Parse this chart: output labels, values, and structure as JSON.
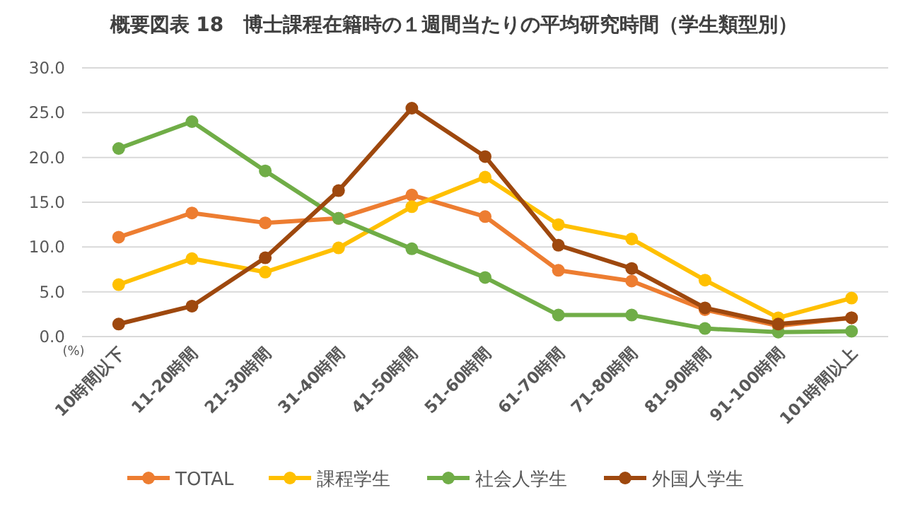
{
  "chart_data": {
    "type": "line",
    "title": "概要図表 18　博士課程在籍時の１週間当たりの平均研究時間（学生類型別）",
    "ylabel": "(%)",
    "categories": [
      "10時間以下",
      "11-20時間",
      "21-30時間",
      "31-40時間",
      "41-50時間",
      "51-60時間",
      "61-70時間",
      "71-80時間",
      "81-90時間",
      "91-100時間",
      "101時間以上"
    ],
    "series": [
      {
        "name": "TOTAL",
        "color": "#ed7d31",
        "values": [
          11.1,
          13.8,
          12.7,
          13.2,
          15.8,
          13.4,
          7.4,
          6.2,
          3.0,
          1.2,
          2.1
        ]
      },
      {
        "name": "課程学生",
        "color": "#ffc000",
        "values": [
          5.8,
          8.7,
          7.2,
          9.9,
          14.5,
          17.8,
          12.5,
          10.9,
          6.3,
          2.1,
          4.3
        ]
      },
      {
        "name": "社会人学生",
        "color": "#70ad47",
        "values": [
          21.0,
          24.0,
          18.5,
          13.2,
          9.8,
          6.6,
          2.4,
          2.4,
          0.9,
          0.5,
          0.6
        ]
      },
      {
        "name": "外国人学生",
        "color": "#9e480e",
        "values": [
          1.4,
          3.4,
          8.8,
          16.3,
          25.5,
          20.1,
          10.2,
          7.6,
          3.2,
          1.4,
          2.1
        ]
      }
    ],
    "ylim": [
      0,
      30
    ],
    "yticks": [
      {
        "value": 0,
        "label": "0.0"
      },
      {
        "value": 5,
        "label": "5.0"
      },
      {
        "value": 10,
        "label": "10.0"
      },
      {
        "value": 15,
        "label": "15.0"
      },
      {
        "value": 20,
        "label": "20.0"
      },
      {
        "value": 25,
        "label": "25.0"
      },
      {
        "value": 30,
        "label": "30.0"
      }
    ],
    "grid": "y",
    "legend": "bottom",
    "marker": "circle",
    "line_style": "solid"
  }
}
